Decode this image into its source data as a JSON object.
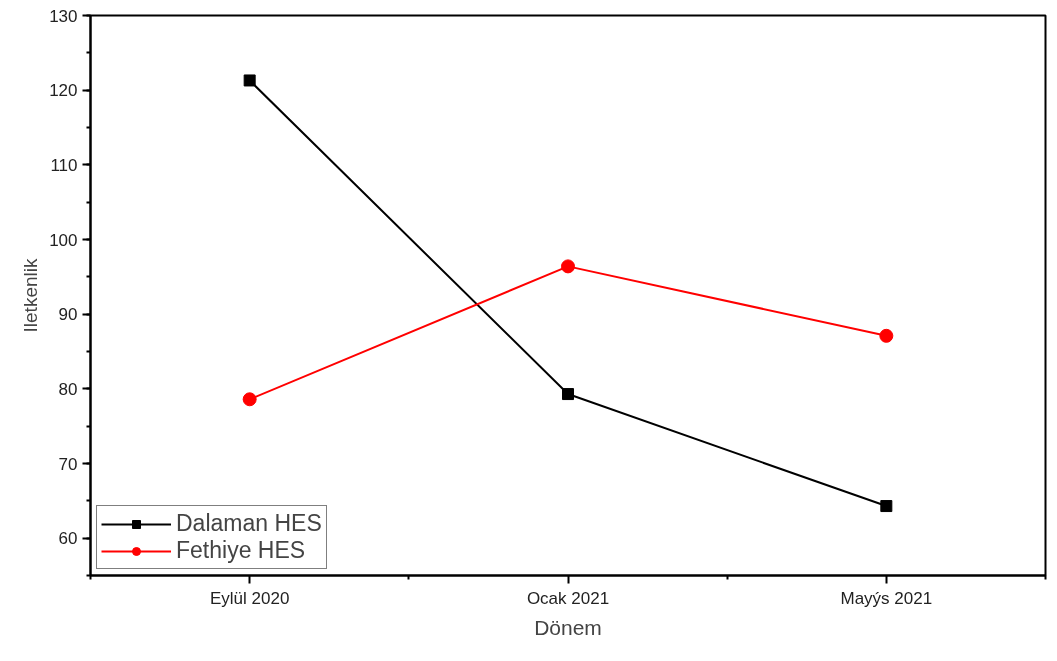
{
  "chart_data": {
    "type": "line",
    "xlabel": "Dönem",
    "ylabel": "Iletkenlik",
    "categories": [
      "Eylül 2020",
      "Ocak 2021",
      "Mayýs 2021"
    ],
    "series": [
      {
        "name": "Dalaman HES",
        "color": "#000000",
        "marker": "square",
        "values": [
          121.3,
          79.3,
          64.3
        ]
      },
      {
        "name": "Fethiye HES",
        "color": "#ff0000",
        "marker": "circle",
        "values": [
          78.6,
          96.4,
          87.1
        ]
      }
    ],
    "ylim": [
      55,
      130
    ],
    "yticks": [
      60,
      70,
      80,
      90,
      100,
      110,
      120,
      130
    ],
    "grid": false,
    "legend": "bottom left",
    "line_style": "solid"
  }
}
